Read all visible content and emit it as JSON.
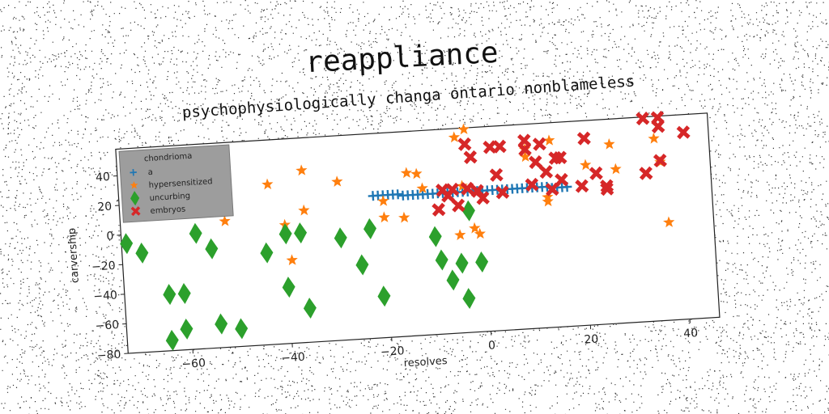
{
  "chart_data": {
    "type": "scatter",
    "title": "reappliance",
    "subtitle": "psychophysiologically changa ontario nonblameless",
    "xlabel": "resolves",
    "ylabel": "carvership",
    "xlim": [
      -73,
      46
    ],
    "ylim": [
      -80,
      58
    ],
    "xticks": [
      -60,
      -40,
      -20,
      0,
      20,
      40
    ],
    "yticks": [
      -80,
      -60,
      -40,
      -20,
      0,
      20,
      40
    ],
    "grid": false,
    "legend": {
      "title": "chondrioma",
      "position": "top-left"
    },
    "series": [
      {
        "name": "a",
        "marker": "plus",
        "color": "#1f77b4",
        "points": [
          [
            -22,
            16
          ],
          [
            -21,
            16
          ],
          [
            -20,
            16
          ],
          [
            -19,
            16
          ],
          [
            -18,
            16
          ],
          [
            -17,
            16
          ],
          [
            -16,
            15
          ],
          [
            -15,
            15
          ],
          [
            -14,
            15
          ],
          [
            -13,
            15
          ],
          [
            -12,
            15
          ],
          [
            -11,
            15
          ],
          [
            -10,
            15
          ],
          [
            -9,
            15
          ],
          [
            -8,
            15
          ],
          [
            -7,
            15
          ],
          [
            -6,
            15
          ],
          [
            -5,
            15
          ],
          [
            -4,
            15
          ],
          [
            -3,
            15
          ],
          [
            -2,
            15
          ],
          [
            -1,
            15
          ],
          [
            0,
            15
          ],
          [
            1,
            15
          ],
          [
            2,
            15
          ],
          [
            3,
            15
          ],
          [
            4,
            15
          ],
          [
            5,
            15
          ],
          [
            6,
            15
          ],
          [
            7,
            15
          ],
          [
            8,
            15
          ],
          [
            9,
            15
          ],
          [
            10,
            15
          ],
          [
            11,
            15
          ],
          [
            12,
            15
          ],
          [
            13,
            15
          ],
          [
            14,
            14
          ],
          [
            15,
            14
          ],
          [
            16,
            14
          ],
          [
            17,
            14
          ]
        ]
      },
      {
        "name": "hypersensitized",
        "marker": "star",
        "color": "#ff7f0e",
        "points": [
          [
            -52,
            5
          ],
          [
            -43,
            28
          ],
          [
            -40,
            0
          ],
          [
            -39,
            -24
          ],
          [
            -36,
            9
          ],
          [
            -36,
            36
          ],
          [
            -29,
            27
          ],
          [
            -20,
            12
          ],
          [
            -20,
            1
          ],
          [
            -16,
            0
          ],
          [
            -15,
            30
          ],
          [
            -13,
            29
          ],
          [
            -12,
            19
          ],
          [
            -5,
            52
          ],
          [
            -5,
            -14
          ],
          [
            -3,
            57
          ],
          [
            -2,
            -10
          ],
          [
            -1,
            -14
          ],
          [
            -4,
            19
          ],
          [
            9,
            36
          ],
          [
            9,
            41
          ],
          [
            13,
            8
          ],
          [
            13,
            5
          ],
          [
            14,
            46
          ],
          [
            21,
            28
          ],
          [
            26,
            41
          ],
          [
            27,
            24
          ],
          [
            35,
            43
          ],
          [
            37,
            -14
          ],
          [
            36,
            27
          ]
        ]
      },
      {
        "name": "uncurbing",
        "marker": "diamond",
        "color": "#2ca02c",
        "points": [
          [
            -72,
            -6
          ],
          [
            -69,
            -13
          ],
          [
            -64,
            -42
          ],
          [
            -61,
            -42
          ],
          [
            -64,
            -73
          ],
          [
            -61,
            -66
          ],
          [
            -58,
            -2
          ],
          [
            -55,
            -13
          ],
          [
            -54,
            -64
          ],
          [
            -50,
            -68
          ],
          [
            -44,
            -18
          ],
          [
            -40,
            -6
          ],
          [
            -40,
            -42
          ],
          [
            -37,
            -6
          ],
          [
            -36,
            -57
          ],
          [
            -29,
            -11
          ],
          [
            -25,
            -30
          ],
          [
            -23,
            -6
          ],
          [
            -21,
            -52
          ],
          [
            -10,
            -14
          ],
          [
            -9,
            -30
          ],
          [
            -7,
            -44
          ],
          [
            -5,
            -33
          ],
          [
            -4,
            -57
          ],
          [
            -3,
            2
          ],
          [
            -1,
            -33
          ]
        ]
      },
      {
        "name": "embryos",
        "marker": "x",
        "color": "#d62728",
        "points": [
          [
            -9,
            4
          ],
          [
            -8,
            17
          ],
          [
            -7,
            13
          ],
          [
            -6,
            17
          ],
          [
            -5,
            6
          ],
          [
            -3,
            47
          ],
          [
            -2,
            38
          ],
          [
            -3,
            17
          ],
          [
            -1,
            15
          ],
          [
            0,
            10
          ],
          [
            2,
            44
          ],
          [
            3,
            25
          ],
          [
            4,
            13
          ],
          [
            4,
            44
          ],
          [
            9,
            47
          ],
          [
            9,
            41
          ],
          [
            10,
            17
          ],
          [
            11,
            32
          ],
          [
            12,
            44
          ],
          [
            13,
            25
          ],
          [
            14,
            13
          ],
          [
            15,
            34
          ],
          [
            16,
            34
          ],
          [
            16,
            19
          ],
          [
            20,
            14
          ],
          [
            21,
            46
          ],
          [
            23,
            22
          ],
          [
            25,
            13
          ],
          [
            25,
            11
          ],
          [
            33,
            20
          ],
          [
            33,
            57
          ],
          [
            36,
            57
          ],
          [
            36,
            51
          ],
          [
            36,
            28
          ],
          [
            41,
            46
          ]
        ]
      }
    ]
  }
}
